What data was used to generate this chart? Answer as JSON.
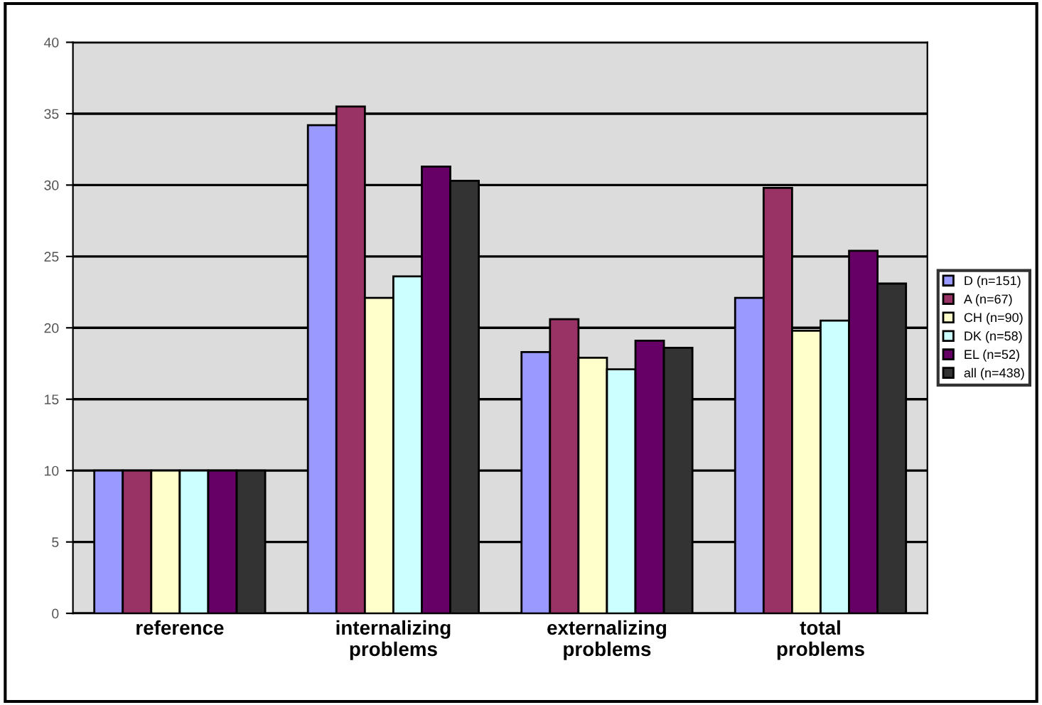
{
  "chart_data": {
    "type": "bar",
    "categories": [
      "reference",
      "internalizing problems",
      "externalizing problems",
      "total problems"
    ],
    "series": [
      {
        "name": "D (n=151)",
        "color": "#9999ff",
        "values": [
          10,
          34.2,
          18.3,
          22.1
        ]
      },
      {
        "name": "A (n=67)",
        "color": "#993366",
        "values": [
          10,
          35.5,
          20.6,
          29.8
        ]
      },
      {
        "name": "CH (n=90)",
        "color": "#ffffcc",
        "values": [
          10,
          22.1,
          17.9,
          19.8
        ]
      },
      {
        "name": "DK (n=58)",
        "color": "#ccffff",
        "values": [
          10,
          23.6,
          17.1,
          20.5
        ]
      },
      {
        "name": "EL (n=52)",
        "color": "#660066",
        "values": [
          10,
          31.3,
          19.1,
          25.4
        ]
      },
      {
        "name": "all (n=438)",
        "color": "#333333",
        "values": [
          10,
          30.3,
          18.6,
          23.1
        ]
      }
    ],
    "ylim": [
      0,
      40
    ],
    "yticks": [
      0,
      5,
      10,
      15,
      20,
      25,
      30,
      35,
      40
    ],
    "grid": "y",
    "legend": "right"
  }
}
